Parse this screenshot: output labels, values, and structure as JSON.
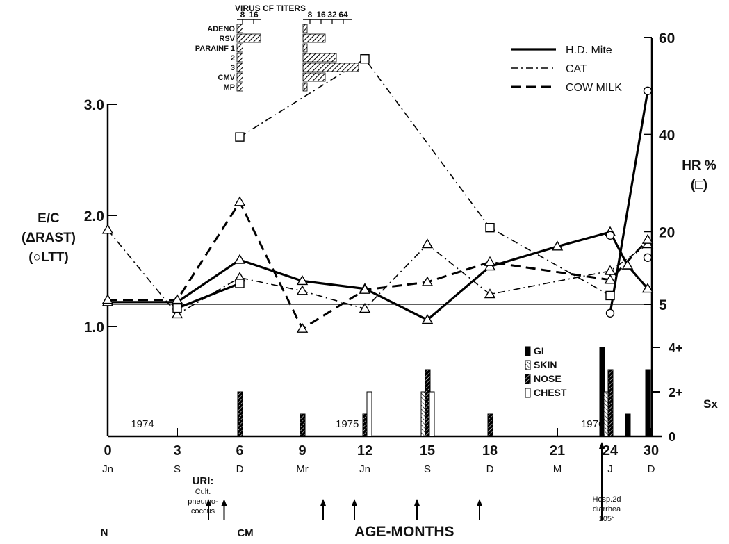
{
  "chart_data": [
    {
      "type": "line",
      "id": "main",
      "axes": {
        "x": {
          "label": "AGE-MONTHS",
          "ticks": [
            "0",
            "3",
            "6",
            "9",
            "12",
            "15",
            "18",
            "21",
            "24",
            "30"
          ],
          "sublabels": [
            "Jn",
            "S",
            "D",
            "Mr",
            "Jn",
            "S",
            "D",
            "M",
            "J",
            "D"
          ]
        },
        "y_left": {
          "label_lines": [
            "E/C",
            "(ΔRAST)",
            "(○LTT)"
          ],
          "ticks": [
            "1.0",
            "2.0",
            "3.0"
          ],
          "range": [
            0.7,
            3.2
          ]
        },
        "y_right": {
          "label_lines": [
            "HR %",
            "(□)"
          ],
          "ticks": [
            "5",
            "20",
            "40",
            "60"
          ],
          "range": [
            -6,
            62
          ]
        }
      },
      "reference_line": 1.2,
      "legend": {
        "placement": "top-right",
        "entries": [
          {
            "label": "H.D. Mite",
            "style": "solid"
          },
          {
            "label": "CAT",
            "style": "dashdot"
          },
          {
            "label": "COW MILK",
            "style": "dashed"
          }
        ]
      },
      "series": [
        {
          "name": "H.D. Mite",
          "marker": "triangle",
          "style": "solid",
          "points": [
            [
              0,
              1.22
            ],
            [
              3,
              1.22
            ],
            [
              6,
              1.6
            ],
            [
              9,
              1.41
            ],
            [
              12,
              1.34
            ],
            [
              15,
              1.06
            ],
            [
              18,
              1.54
            ],
            [
              21,
              1.72
            ],
            [
              24,
              1.85
            ],
            [
              25.2,
              1.55
            ]
          ]
        },
        {
          "name": "H.D. Mite",
          "marker": "triangle",
          "style": "solid",
          "points": [
            [
              25.2,
              1.55
            ],
            [
              26.3,
              1.34
            ]
          ]
        },
        {
          "name": "CAT",
          "marker": "triangle",
          "style": "dashdot",
          "points": [
            [
              0,
              1.87
            ],
            [
              3,
              1.11
            ],
            [
              6,
              1.44
            ],
            [
              9,
              1.32
            ],
            [
              12,
              1.16
            ],
            [
              15,
              1.74
            ],
            [
              18,
              1.29
            ],
            [
              24,
              1.5
            ],
            [
              26.3,
              1.74
            ]
          ]
        },
        {
          "name": "COW MILK",
          "marker": "triangle",
          "style": "dashed",
          "points": [
            [
              0,
              1.24
            ],
            [
              3,
              1.24
            ],
            [
              6,
              2.12
            ],
            [
              9,
              0.98
            ],
            [
              12,
              1.33
            ],
            [
              15,
              1.4
            ],
            [
              18,
              1.58
            ],
            [
              24,
              1.42
            ],
            [
              26.3,
              1.78
            ]
          ]
        },
        {
          "name": "LTT",
          "marker": "circle",
          "style": "solid",
          "points": [
            [
              24,
              1.12
            ],
            [
              26.3,
              3.12
            ]
          ]
        },
        {
          "name": "LTT",
          "marker": "circle",
          "style": "none",
          "points": [
            [
              24,
              1.82
            ],
            [
              26.3,
              1.62
            ]
          ]
        },
        {
          "name": "HR %",
          "marker": "square",
          "style": "solid",
          "axis": "right",
          "points": [
            [
              3,
              4.2
            ],
            [
              6,
              9.3
            ]
          ]
        },
        {
          "name": "HR %",
          "marker": "square",
          "style": "dashdot",
          "axis": "right",
          "points": [
            [
              6,
              39.5
            ],
            [
              12,
              55.6
            ],
            [
              18,
              20.8
            ],
            [
              24,
              6.8
            ]
          ]
        }
      ],
      "year_labels": [
        {
          "x": 1,
          "text": "1974"
        },
        {
          "x": 10.6,
          "text": "1975"
        },
        {
          "x": 22.3,
          "text": "1976"
        }
      ],
      "events_below_axis": [
        {
          "x": 4.5,
          "lines": [
            "URI:",
            "Cult.",
            "pneumo-",
            "coccus"
          ]
        },
        {
          "x": 5.25,
          "lines": [
            "CM"
          ]
        },
        {
          "x": -0.1,
          "lines": [
            "N"
          ]
        },
        {
          "x": 23.45,
          "lines": [
            "Hosp.2d",
            "diarrhea",
            "105°"
          ]
        }
      ],
      "arrow_months": [
        4.5,
        5.25,
        10,
        11.5,
        14.5,
        17.5,
        23.45
      ]
    },
    {
      "type": "bar",
      "id": "symptoms",
      "y_label": "Sx",
      "y_ticks": [
        "0",
        "2+",
        "4+"
      ],
      "y_range": [
        0,
        4
      ],
      "legend": [
        "GI",
        "SKIN",
        "NOSE",
        "CHEST"
      ],
      "bars": [
        {
          "x": 6,
          "category": "NOSE",
          "value": 2
        },
        {
          "x": 9,
          "category": "NOSE",
          "value": 1
        },
        {
          "x": 12,
          "category": "NOSE",
          "value": 1
        },
        {
          "x": 12,
          "category": "CHEST",
          "value": 2
        },
        {
          "x": 15,
          "category": "SKIN",
          "value": 2
        },
        {
          "x": 15,
          "category": "NOSE",
          "value": 3
        },
        {
          "x": 15,
          "category": "CHEST",
          "value": 2
        },
        {
          "x": 18,
          "category": "NOSE",
          "value": 1
        },
        {
          "x": 23.45,
          "category": "GI",
          "value": 4
        },
        {
          "x": 24,
          "category": "SKIN",
          "value": 2
        },
        {
          "x": 24,
          "category": "NOSE",
          "value": 3
        },
        {
          "x": 25.2,
          "category": "NOSE",
          "value": 1
        },
        {
          "x": 25.2,
          "category": "GI",
          "value": 1
        },
        {
          "x": 26.3,
          "category": "GI",
          "value": 3
        }
      ]
    },
    {
      "type": "bar",
      "id": "virus-titers",
      "title": "VIRUS CF TITERS",
      "categories": [
        "ADENO",
        "RSV",
        "PARAINF 1",
        "2",
        "3",
        "CMV",
        "MP"
      ],
      "left_ticks": [
        "8",
        "16"
      ],
      "right_ticks": [
        "8",
        "16",
        "32",
        "64"
      ],
      "left_values": [
        1,
        4,
        1,
        1,
        1,
        1,
        1
      ],
      "right_values": [
        1,
        2,
        1,
        3,
        5,
        2,
        1
      ]
    }
  ]
}
